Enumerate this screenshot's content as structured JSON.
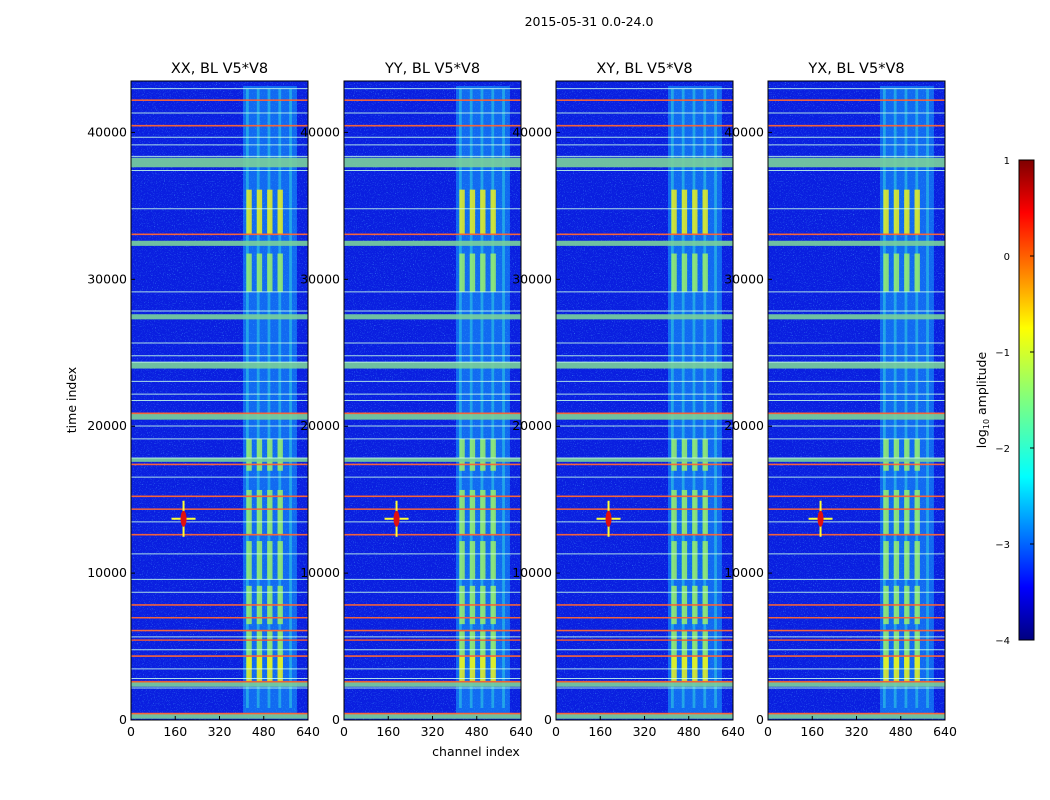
{
  "figure": {
    "suptitle": "2015-05-31 0.0-24.0",
    "xlabel": "channel index",
    "ylabel": "time index"
  },
  "colorbar": {
    "label": "log10 amplitude",
    "label_main": "log",
    "label_sub": "10",
    "label_tail": " amplitude",
    "ticks": [
      1,
      0,
      -1,
      -2,
      -3,
      -4
    ],
    "tick_labels": [
      "1",
      "0",
      "−1",
      "−2",
      "−3",
      "−4"
    ],
    "range": [
      -4,
      1
    ],
    "colormap": "jet"
  },
  "chart_data": [
    {
      "type": "heatmap",
      "title": "XX, BL V5*V8",
      "x_range": [
        0,
        640
      ],
      "y_range": [
        0,
        43500
      ],
      "x_ticks": [
        0,
        160,
        320,
        480,
        640
      ],
      "x_tick_labels": [
        "0",
        "160",
        "320",
        "480",
        "640"
      ],
      "y_ticks": [
        0,
        10000,
        20000,
        30000,
        40000
      ],
      "y_tick_labels": [
        "0",
        "10000",
        "20000",
        "30000",
        "40000"
      ],
      "point_source": {
        "channel": 190,
        "time": 13700
      }
    },
    {
      "type": "heatmap",
      "title": "YY, BL V5*V8",
      "x_range": [
        0,
        640
      ],
      "y_range": [
        0,
        43500
      ],
      "x_ticks": [
        0,
        160,
        320,
        480,
        640
      ],
      "x_tick_labels": [
        "0",
        "160",
        "320",
        "480",
        "640"
      ],
      "y_ticks": [
        0,
        10000,
        20000,
        30000,
        40000
      ],
      "y_tick_labels": [
        "0",
        "10000",
        "20000",
        "30000",
        "40000"
      ],
      "point_source": {
        "channel": 190,
        "time": 13700
      }
    },
    {
      "type": "heatmap",
      "title": "XY, BL V5*V8",
      "x_range": [
        0,
        640
      ],
      "y_range": [
        0,
        43500
      ],
      "x_ticks": [
        0,
        160,
        320,
        480,
        640
      ],
      "x_tick_labels": [
        "0",
        "160",
        "320",
        "480",
        "640"
      ],
      "y_ticks": [
        0,
        10000,
        20000,
        30000,
        40000
      ],
      "y_tick_labels": [
        "0",
        "10000",
        "20000",
        "30000",
        "40000"
      ],
      "point_source": {
        "channel": 190,
        "time": 13700
      }
    },
    {
      "type": "heatmap",
      "title": "YX, BL V5*V8",
      "x_range": [
        0,
        640
      ],
      "y_range": [
        0,
        43500
      ],
      "x_ticks": [
        0,
        160,
        320,
        480,
        640
      ],
      "x_tick_labels": [
        "0",
        "160",
        "320",
        "480",
        "640"
      ],
      "y_ticks": [
        0,
        10000,
        20000,
        30000,
        40000
      ],
      "y_tick_labels": [
        "0",
        "10000",
        "20000",
        "30000",
        "40000"
      ],
      "point_source": {
        "channel": 190,
        "time": 13700
      }
    }
  ]
}
